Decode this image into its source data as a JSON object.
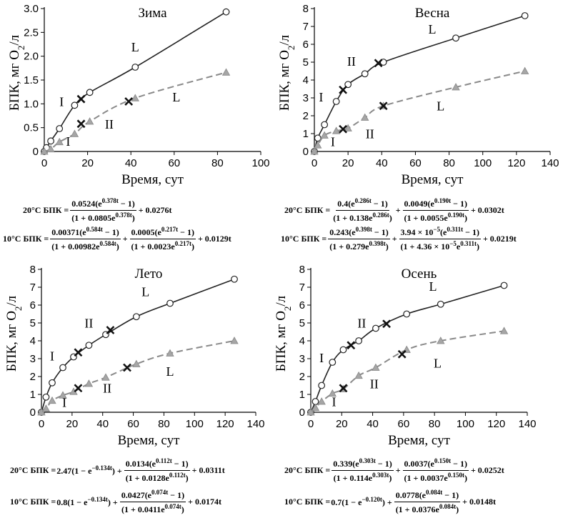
{
  "chart_data": [
    {
      "type": "line",
      "title": "Зима",
      "xlabel": "Время, сут",
      "ylabel": "БПК, мг O2/л",
      "xlim": [
        0,
        100
      ],
      "ylim": [
        0,
        3.0
      ],
      "xticks": [
        0,
        20,
        40,
        60,
        80,
        100
      ],
      "yticks": [
        "0",
        "0.5",
        "1.0",
        "1.5",
        "2.0",
        "2.5",
        "3.0"
      ],
      "series": [
        {
          "marker": "circle",
          "style": "solid",
          "color": "#222222",
          "x": [
            0,
            1,
            3,
            7,
            14,
            21,
            42,
            84
          ],
          "y": [
            0,
            0.08,
            0.22,
            0.48,
            0.97,
            1.24,
            1.77,
            2.93
          ]
        },
        {
          "marker": "triangle",
          "style": "dashed",
          "color": "#8a8a8a",
          "x": [
            0,
            3,
            7,
            14,
            21,
            42,
            84
          ],
          "y": [
            0,
            0.05,
            0.2,
            0.37,
            0.63,
            1.12,
            1.66
          ]
        }
      ],
      "crosses": [
        {
          "x": 17,
          "y": 1.1
        },
        {
          "x": 17,
          "y": 0.58
        },
        {
          "x": 39,
          "y": 1.05
        }
      ],
      "annotations": [
        {
          "text": "L",
          "x": 42,
          "y": 2.1
        },
        {
          "text": "I",
          "x": 8,
          "y": 0.95
        },
        {
          "text": "I",
          "x": 11,
          "y": 0.12
        },
        {
          "text": "II",
          "x": 30,
          "y": 0.48
        },
        {
          "text": "L",
          "x": 61,
          "y": 1.05
        }
      ]
    },
    {
      "type": "line",
      "title": "Весна",
      "xlabel": "Время, сут",
      "ylabel": "БПК, мг O2/л",
      "xlim": [
        0,
        140
      ],
      "ylim": [
        0,
        8
      ],
      "xticks": [
        0,
        20,
        40,
        60,
        80,
        100,
        120,
        140
      ],
      "yticks": [
        "0",
        "1",
        "2",
        "3",
        "4",
        "5",
        "6",
        "7",
        "8"
      ],
      "series": [
        {
          "marker": "circle",
          "style": "solid",
          "color": "#222222",
          "x": [
            0,
            2,
            6,
            13,
            20,
            30,
            41,
            84,
            125
          ],
          "y": [
            0,
            0.75,
            1.5,
            2.8,
            3.75,
            4.35,
            5.0,
            6.35,
            7.6
          ]
        },
        {
          "marker": "triangle",
          "style": "dashed",
          "color": "#8a8a8a",
          "x": [
            0,
            2,
            6,
            13,
            20,
            30,
            41,
            84,
            125
          ],
          "y": [
            0,
            0.35,
            0.9,
            1.15,
            1.3,
            1.9,
            2.55,
            3.6,
            4.5
          ]
        }
      ],
      "crosses": [
        {
          "x": 17,
          "y": 3.45
        },
        {
          "x": 38,
          "y": 4.95
        },
        {
          "x": 17,
          "y": 1.25
        },
        {
          "x": 41,
          "y": 2.55
        }
      ],
      "annotations": [
        {
          "text": "L",
          "x": 70,
          "y": 6.6
        },
        {
          "text": "II",
          "x": 22,
          "y": 4.8
        },
        {
          "text": "I",
          "x": 4,
          "y": 2.8
        },
        {
          "text": "II",
          "x": 33,
          "y": 0.75
        },
        {
          "text": "I",
          "x": 11,
          "y": 0.3
        },
        {
          "text": "L",
          "x": 75,
          "y": 2.3
        }
      ]
    },
    {
      "type": "line",
      "title": "Лето",
      "xlabel": "Время, сут",
      "ylabel": "БПК, мг O2/л",
      "xlim": [
        0,
        140
      ],
      "ylim": [
        0,
        8
      ],
      "xticks": [
        0,
        20,
        40,
        60,
        80,
        100,
        120,
        140
      ],
      "yticks": [
        "0",
        "1",
        "2",
        "3",
        "4",
        "5",
        "6",
        "7",
        "8"
      ],
      "series": [
        {
          "marker": "circle",
          "style": "solid",
          "color": "#222222",
          "x": [
            0,
            3,
            7,
            14,
            21,
            31,
            42,
            62,
            84,
            126
          ],
          "y": [
            0,
            0.85,
            1.65,
            2.5,
            3.1,
            3.75,
            4.35,
            5.35,
            6.1,
            7.45
          ]
        },
        {
          "marker": "triangle",
          "style": "dashed",
          "color": "#8a8a8a",
          "x": [
            0,
            3,
            7,
            14,
            21,
            31,
            42,
            62,
            84,
            126
          ],
          "y": [
            0,
            0.2,
            0.65,
            0.95,
            1.15,
            1.6,
            1.95,
            2.7,
            3.3,
            4.0
          ]
        }
      ],
      "crosses": [
        {
          "x": 24,
          "y": 3.35
        },
        {
          "x": 45,
          "y": 4.6
        },
        {
          "x": 24,
          "y": 1.35
        },
        {
          "x": 56,
          "y": 2.5
        }
      ],
      "annotations": [
        {
          "text": "L",
          "x": 68,
          "y": 6.5
        },
        {
          "text": "II",
          "x": 31,
          "y": 4.75
        },
        {
          "text": "I",
          "x": 7,
          "y": 2.9
        },
        {
          "text": "II",
          "x": 43,
          "y": 1.1
        },
        {
          "text": "I",
          "x": 15,
          "y": 0.3
        },
        {
          "text": "L",
          "x": 84,
          "y": 2.05
        }
      ]
    },
    {
      "type": "line",
      "title": "Осень",
      "xlabel": "Время, сут",
      "ylabel": "БПК, мг O2/л",
      "xlim": [
        0,
        140
      ],
      "ylim": [
        0,
        8
      ],
      "xticks": [
        0,
        20,
        40,
        60,
        80,
        100,
        120,
        140
      ],
      "yticks": [
        "0",
        "1",
        "2",
        "3",
        "4",
        "5",
        "6",
        "7",
        "8"
      ],
      "series": [
        {
          "marker": "circle",
          "style": "solid",
          "color": "#222222",
          "x": [
            0,
            3,
            7,
            14,
            21,
            31,
            42,
            62,
            84,
            125
          ],
          "y": [
            0,
            0.6,
            1.5,
            2.8,
            3.5,
            4.0,
            4.7,
            5.5,
            6.05,
            7.1
          ]
        },
        {
          "marker": "triangle",
          "style": "dashed",
          "color": "#8a8a8a",
          "x": [
            0,
            3,
            7,
            14,
            21,
            31,
            42,
            62,
            84,
            125
          ],
          "y": [
            0,
            0.25,
            0.6,
            1.05,
            1.3,
            2.05,
            2.5,
            3.5,
            4.0,
            4.55
          ]
        }
      ],
      "crosses": [
        {
          "x": 26,
          "y": 3.75
        },
        {
          "x": 49,
          "y": 4.95
        },
        {
          "x": 21,
          "y": 1.35
        },
        {
          "x": 59,
          "y": 3.25
        }
      ],
      "annotations": [
        {
          "text": "L",
          "x": 79,
          "y": 6.8
        },
        {
          "text": "II",
          "x": 33,
          "y": 4.75
        },
        {
          "text": "I",
          "x": 7,
          "y": 2.8
        },
        {
          "text": "II",
          "x": 41,
          "y": 1.35
        },
        {
          "text": "I",
          "x": 15,
          "y": 0.35
        },
        {
          "text": "L",
          "x": 82,
          "y": 2.5
        }
      ]
    }
  ],
  "formulas": {
    "winter": {
      "w20": {
        "label": "20°C БПК =",
        "num": "0.0524(e^{0.378t} − 1)",
        "den": "(1 + 0.0805e^{0.378t})",
        "tail": "+ 0.0276t"
      },
      "w10": {
        "label": "10°C БПК =",
        "num1": "0.00371(e^{0.584t} − 1)",
        "den1": "(1 + 0.00982e^{0.584t})",
        "plus": "+",
        "num2": "0.0005(e^{0.217t} − 1)",
        "den2": "(1 + 0.0023e^{0.217t})",
        "tail": "+ 0.0129t"
      }
    },
    "spring": {
      "s20": {
        "label": "20°C БПК =",
        "num1": "0.4(e^{0.286t} − 1)",
        "den1": "(1 + 0.138e^{0.286t})",
        "plus": "+",
        "num2": "0.0049(e^{0.190t} − 1)",
        "den2": "(1 + 0.0055e^{0.190t})",
        "tail": "+ 0.0302t"
      },
      "s10": {
        "label": "10°C БПК =",
        "num1": "0.243(e^{0.398t} − 1)",
        "den1": "(1 + 0.279e^{0.398t})",
        "plus": "+",
        "num2": "3.94 × 10^{−5}(e^{0.311t} − 1)",
        "den2": "(1 + 4.36 × 10^{−5}e^{0.311t})",
        "tail": "+ 0.0219t"
      }
    },
    "summer": {
      "u20": {
        "label": "20°C БПК =",
        "pre": "2.47(1 − e^{−0.134t}) +",
        "num": "0.0134(e^{0.112t} − 1)",
        "den": "(1 + 0.0128e^{0.112t})",
        "tail": "+ 0.0311t"
      },
      "u10": {
        "label": "10°C БПК =",
        "pre": "0.8(1 − e^{−0.134t}) +",
        "num": "0.0427(e^{0.074t} − 1)",
        "den": "(1 + 0.0411e^{0.074t})",
        "tail": "+ 0.0174t"
      }
    },
    "autumn": {
      "a20": {
        "label": "20°C БПК =",
        "num1": "0.339(e^{0.303t} − 1)",
        "den1": "(1 + 0.114e^{0.303t})",
        "plus": "+",
        "num2": "0.0037(e^{0.150t} − 1)",
        "den2": "(1 + 0.0037e^{0.150t})",
        "tail": "+ 0.0252t"
      },
      "a10": {
        "label": "10°C БПК =",
        "pre": "0.7(1 − e^{−0.120t}) +",
        "num": "0.0778(e^{0.084t} − 1)",
        "den": "(1 + 0.0376e^{0.084t})",
        "tail": "+ 0.0148t"
      }
    }
  }
}
